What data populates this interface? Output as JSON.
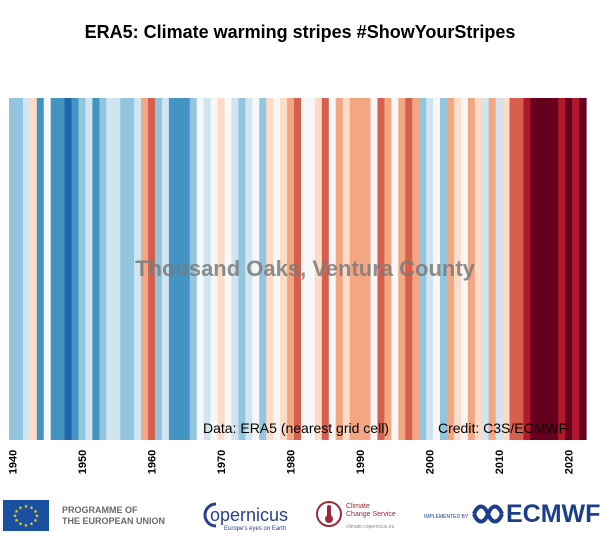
{
  "title": "ERA5: Climate warming stripes #ShowYourStripes",
  "location": "Thousand Oaks, Ventura County",
  "data_note": "Data: ERA5 (nearest grid cell)",
  "credit_note": "Credit: C3S/ECMWF",
  "chart_data": {
    "type": "heatmap",
    "title": "ERA5: Climate warming stripes #ShowYourStripes",
    "subtitle": "Thousand Oaks, Ventura County",
    "x_ticks": [
      1940,
      1950,
      1960,
      1970,
      1980,
      1990,
      2000,
      2010,
      2020
    ],
    "xlim": [
      1940,
      2022
    ],
    "years": [
      1940,
      1941,
      1942,
      1943,
      1944,
      1945,
      1946,
      1947,
      1948,
      1949,
      1950,
      1951,
      1952,
      1953,
      1954,
      1955,
      1956,
      1957,
      1958,
      1959,
      1960,
      1961,
      1962,
      1963,
      1964,
      1965,
      1966,
      1967,
      1968,
      1969,
      1970,
      1971,
      1972,
      1973,
      1974,
      1975,
      1976,
      1977,
      1978,
      1979,
      1980,
      1981,
      1982,
      1983,
      1984,
      1985,
      1986,
      1987,
      1988,
      1989,
      1990,
      1991,
      1992,
      1993,
      1994,
      1995,
      1996,
      1997,
      1998,
      1999,
      2000,
      2001,
      2002,
      2003,
      2004,
      2005,
      2006,
      2007,
      2008,
      2009,
      2010,
      2011,
      2012,
      2013,
      2014,
      2015,
      2016,
      2017,
      2018,
      2019,
      2020,
      2021,
      2022
    ],
    "colors": [
      "#92c5de",
      "#92c5de",
      "#d1e5f0",
      "#fddbc7",
      "#4393c3",
      "#f7f7f7",
      "#4393c3",
      "#4393c3",
      "#2166ac",
      "#4393c3",
      "#92c5de",
      "#d1e5f0",
      "#4393c3",
      "#92c5de",
      "#d1e5f0",
      "#d1e5f0",
      "#92c5de",
      "#92c5de",
      "#d1e5f0",
      "#f4a582",
      "#d6604d",
      "#92c5de",
      "#d1e5f0",
      "#4393c3",
      "#4393c3",
      "#4393c3",
      "#92c5de",
      "#f7f7f7",
      "#d1e5f0",
      "#f7f7f7",
      "#fddbc7",
      "#f7f7f7",
      "#d1e5f0",
      "#92c5de",
      "#d1e5f0",
      "#f7f7f7",
      "#92c5de",
      "#fddbc7",
      "#f7f7f7",
      "#fddbc7",
      "#f4a582",
      "#d6604d",
      "#f7f7f7",
      "#f7f7f7",
      "#fddbc7",
      "#d6604d",
      "#f7f7f7",
      "#f4a582",
      "#fddbc7",
      "#f4a582",
      "#f4a582",
      "#f4a582",
      "#f7f7f7",
      "#d6604d",
      "#f4a582",
      "#f7f7f7",
      "#f4a582",
      "#d6604d",
      "#f4a582",
      "#92c5de",
      "#d1e5f0",
      "#f7f7f7",
      "#92c5de",
      "#f4a582",
      "#fddbc7",
      "#f7f7f7",
      "#f4a582",
      "#fddbc7",
      "#d1e5f0",
      "#f4a582",
      "#d1e5f0",
      "#fddbc7",
      "#d6604d",
      "#d6604d",
      "#b2182b",
      "#67001f",
      "#67001f",
      "#67001f",
      "#67001f",
      "#b2182b",
      "#67001f",
      "#b2182b",
      "#67001f"
    ]
  },
  "footer": {
    "eu_line1": "PROGRAMME OF",
    "eu_line2": "THE EUROPEAN UNION",
    "copernicus_name": "opernicus",
    "copernicus_tag": "Europe's eyes on Earth",
    "c3s_line1": "Climate",
    "c3s_line2": "Change Service",
    "c3s_url": "climate.copernicus.eu",
    "implemented_by": "IMPLEMENTED BY",
    "ecmwf_name": "ECMWF"
  }
}
